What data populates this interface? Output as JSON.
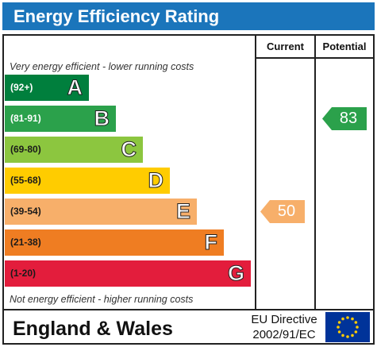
{
  "header": {
    "title": "Energy Efficiency Rating"
  },
  "columns": {
    "current": "Current",
    "potential": "Potential"
  },
  "notes": {
    "top": "Very energy efficient - lower running costs",
    "bottom": "Not energy efficient - higher running costs"
  },
  "bands": [
    {
      "range": "(92+)",
      "letter": "A",
      "color": "#007f3d",
      "range_color": "#ffffff"
    },
    {
      "range": "(81-91)",
      "letter": "B",
      "color": "#2ba14b",
      "range_color": "#ffffff"
    },
    {
      "range": "(69-80)",
      "letter": "C",
      "color": "#8cc63f",
      "range_color": "#1a1a1a"
    },
    {
      "range": "(55-68)",
      "letter": "D",
      "color": "#ffcc00",
      "range_color": "#1a1a1a"
    },
    {
      "range": "(39-54)",
      "letter": "E",
      "color": "#f7af6a",
      "range_color": "#1a1a1a"
    },
    {
      "range": "(21-38)",
      "letter": "F",
      "color": "#ef7d22",
      "range_color": "#1a1a1a"
    },
    {
      "range": "(1-20)",
      "letter": "G",
      "color": "#e31d3c",
      "range_color": "#1a1a1a"
    }
  ],
  "ratings": {
    "current": {
      "value": "50",
      "band": "E",
      "color": "#f7af6a"
    },
    "potential": {
      "value": "83",
      "band": "B",
      "color": "#2ba14b"
    }
  },
  "footer": {
    "region": "England & Wales",
    "directive_line1": "EU Directive",
    "directive_line2": "2002/91/EC",
    "flag_icon": "eu-flag-icon",
    "flag_color": "#003399",
    "star_color": "#ffcc00"
  }
}
